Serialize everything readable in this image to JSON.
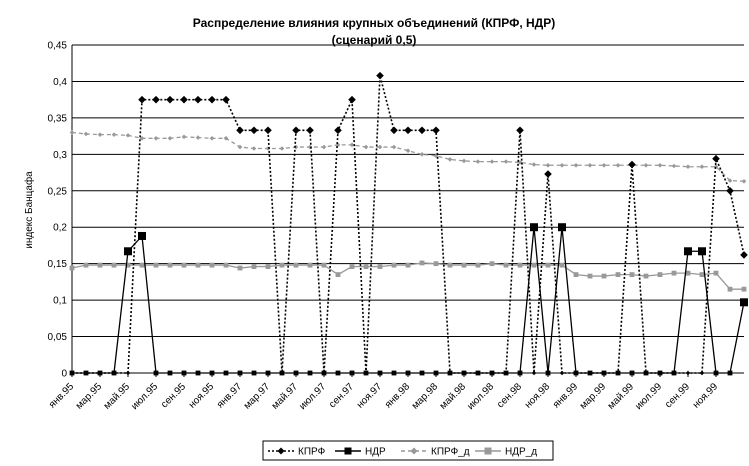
{
  "chart_data": {
    "type": "line",
    "title": "Распределение влияния крупных объединений (КПРФ, НДР)",
    "subtitle": "(сценарий 0,5)",
    "ylabel": "индекс Банцафа",
    "xlabel": "",
    "ylim": [
      0,
      0.45
    ],
    "yticks": [
      "0",
      "0,05",
      "0,1",
      "0,15",
      "0,2",
      "0,25",
      "0,3",
      "0,35",
      "0,4",
      "0,45"
    ],
    "grid": "horizontal",
    "legend_position": "bottom",
    "x_tick_labels": [
      "янв.95",
      "мар.95",
      "май.95",
      "июл.95",
      "сен.95",
      "ноя.95",
      "янв.97",
      "мар.97",
      "май.97",
      "июл.97",
      "сен.97",
      "ноя.97",
      "янв.98",
      "мар.98",
      "май.98",
      "июл.98",
      "сен.98",
      "ноя.98",
      "янв.99",
      "мар.99",
      "май.99",
      "июл.99",
      "сен.99",
      "ноя.99"
    ],
    "series": [
      {
        "name": "КПРФ",
        "color": "#000000",
        "line": "dotted",
        "marker": "diamond",
        "values": [
          0,
          0,
          0,
          0,
          0,
          0.375,
          0.375,
          0.375,
          0.375,
          0.375,
          0.375,
          0.375,
          0.333,
          0.333,
          0.333,
          0,
          0.333,
          0.333,
          0,
          0.333,
          0.375,
          0,
          0.408,
          0.333,
          0.333,
          0.333,
          0.333,
          0,
          0,
          0,
          0,
          0,
          0.333,
          0,
          0.273,
          0,
          0,
          0,
          0,
          0,
          0.286,
          0,
          0,
          0,
          0,
          0,
          0.294,
          0.25,
          0.162
        ]
      },
      {
        "name": "НДР",
        "color": "#000000",
        "line": "solid",
        "marker": "square",
        "values": [
          0,
          0,
          0,
          0,
          0.167,
          0.188,
          0,
          0,
          0,
          0,
          0,
          0,
          0,
          0,
          0,
          0,
          0,
          0,
          0,
          0,
          0,
          0,
          0,
          0,
          0,
          0,
          0,
          0,
          0,
          0,
          0,
          0,
          0,
          0.2,
          0,
          0.2,
          0,
          0,
          0,
          0,
          0,
          0,
          0,
          0,
          0.167,
          0.167,
          0,
          0,
          0.097
        ]
      },
      {
        "name": "КПРФ_д",
        "color": "#999999",
        "line": "dashed",
        "marker": "diamond",
        "values": [
          0.33,
          0.328,
          0.327,
          0.327,
          0.326,
          0.322,
          0.322,
          0.322,
          0.324,
          0.323,
          0.322,
          0.322,
          0.31,
          0.308,
          0.308,
          0.308,
          0.31,
          0.31,
          0.31,
          0.313,
          0.313,
          0.31,
          0.31,
          0.31,
          0.305,
          0.3,
          0.298,
          0.293,
          0.291,
          0.29,
          0.29,
          0.29,
          0.289,
          0.286,
          0.285,
          0.285,
          0.285,
          0.285,
          0.285,
          0.285,
          0.285,
          0.285,
          0.285,
          0.284,
          0.283,
          0.283,
          0.283,
          0.264,
          0.263
        ]
      },
      {
        "name": "НДР_д",
        "color": "#999999",
        "line": "solid",
        "marker": "square",
        "values": [
          0.144,
          0.148,
          0.148,
          0.148,
          0.148,
          0.148,
          0.148,
          0.148,
          0.148,
          0.148,
          0.148,
          0.148,
          0.144,
          0.146,
          0.146,
          0.148,
          0.148,
          0.148,
          0.148,
          0.135,
          0.146,
          0.146,
          0.146,
          0.148,
          0.148,
          0.151,
          0.15,
          0.148,
          0.148,
          0.148,
          0.15,
          0.148,
          0.148,
          0.148,
          0.148,
          0.148,
          0.135,
          0.133,
          0.133,
          0.135,
          0.135,
          0.133,
          0.135,
          0.137,
          0.137,
          0.135,
          0.137,
          0.115,
          0.115
        ]
      }
    ]
  }
}
